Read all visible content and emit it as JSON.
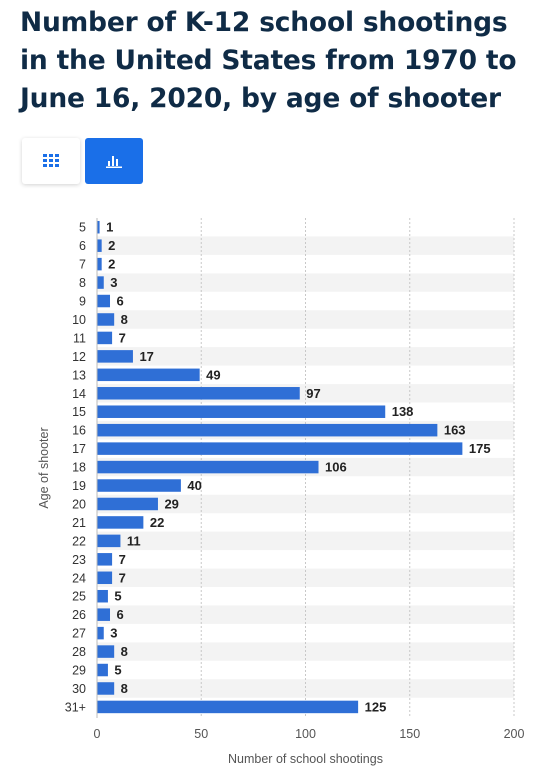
{
  "title": "Number of K-12 school shootings in the United States from 1970 to June 16, 2020, by age of shooter",
  "toggles": {
    "table_icon": "grid-icon",
    "chart_icon": "bar-chart-icon",
    "active": "chart"
  },
  "colors": {
    "bar": "#2f6fd6",
    "accent": "#1a6fe8",
    "title": "#0f2b46"
  },
  "chart_data": {
    "type": "bar",
    "orientation": "horizontal",
    "categories": [
      "5",
      "6",
      "7",
      "8",
      "9",
      "10",
      "11",
      "12",
      "13",
      "14",
      "15",
      "16",
      "17",
      "18",
      "19",
      "20",
      "21",
      "22",
      "23",
      "24",
      "25",
      "26",
      "27",
      "28",
      "29",
      "30",
      "31+"
    ],
    "values": [
      1,
      2,
      2,
      3,
      6,
      8,
      7,
      17,
      49,
      97,
      138,
      163,
      175,
      106,
      40,
      29,
      22,
      11,
      7,
      7,
      5,
      6,
      3,
      8,
      5,
      8,
      125
    ],
    "xlabel": "Number of school shootings",
    "ylabel": "Age of shooter",
    "xlim": [
      0,
      200
    ],
    "xticks": [
      0,
      50,
      100,
      150,
      200
    ],
    "grid": true,
    "data_labels": true
  }
}
